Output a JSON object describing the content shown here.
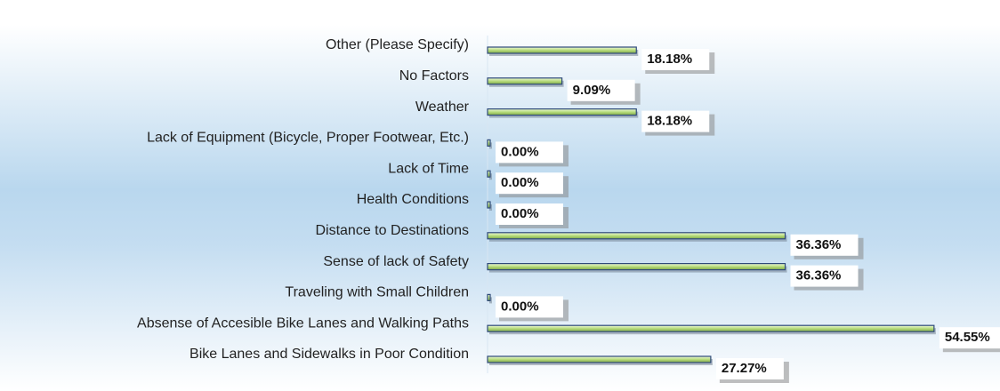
{
  "chart_data": {
    "type": "hbar",
    "categories": [
      "Other (Please Specify)",
      "No Factors",
      "Weather",
      "Lack of Equipment (Bicycle, Proper Footwear, Etc.)",
      "Lack of Time",
      "Health Conditions",
      "Distance to Destinations",
      "Sense of lack of Safety",
      "Traveling with Small Children",
      "Absense of Accesible Bike Lanes and Walking Paths",
      "Bike Lanes and Sidewalks in Poor Condition"
    ],
    "values": [
      18.18,
      9.09,
      18.18,
      0,
      0,
      0,
      36.36,
      36.36,
      0,
      54.55,
      27.27
    ],
    "value_labels": [
      "18.18%",
      "9.09%",
      "18.18%",
      "0.00%",
      "0.00%",
      "0.00%",
      "36.36%",
      "36.36%",
      "0.00%",
      "54.55%",
      "27.27%"
    ],
    "color": "#c9e89a"
  }
}
